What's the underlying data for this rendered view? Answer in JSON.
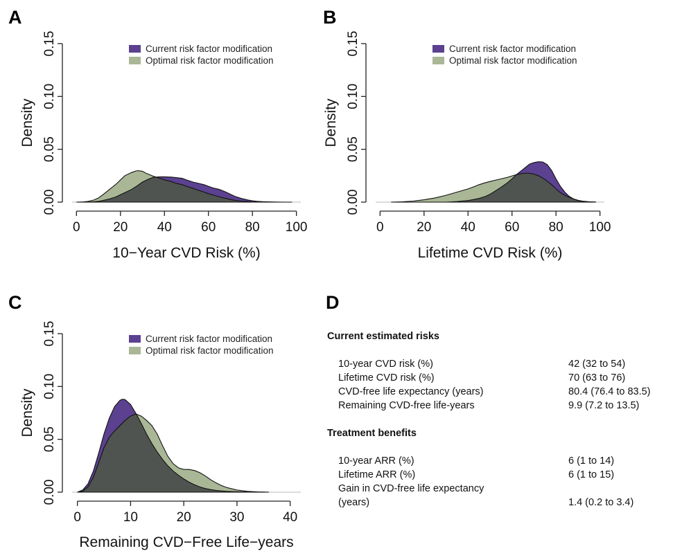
{
  "colors": {
    "current": "#5b4190",
    "optimal": "#a9b796",
    "overlap": "#505450",
    "outline": "#111111"
  },
  "chart_data": [
    {
      "panel": "A",
      "type": "area",
      "xlabel": "10−Year CVD Risk (%)",
      "ylabel": "Density",
      "xlim": [
        -2,
        102
      ],
      "ylim": [
        0,
        0.15
      ],
      "xticks": [
        "0",
        "20",
        "40",
        "60",
        "80",
        "100"
      ],
      "yticks": [
        "0.00",
        "0.05",
        "0.10",
        "0.15"
      ],
      "legend_position": "top-right",
      "series": [
        {
          "name": "Current risk factor modification",
          "color": "#5b4190",
          "x": [
            5,
            8,
            10,
            12,
            15,
            18,
            20,
            22,
            25,
            28,
            30,
            33,
            35,
            38,
            40,
            43,
            45,
            48,
            50,
            53,
            55,
            58,
            60,
            62,
            65,
            68,
            70,
            72,
            75,
            78,
            80,
            82,
            85,
            88,
            90,
            92,
            95,
            98
          ],
          "y": [
            0.0001,
            0.0004,
            0.0008,
            0.0015,
            0.003,
            0.005,
            0.007,
            0.009,
            0.012,
            0.016,
            0.019,
            0.022,
            0.0235,
            0.024,
            0.024,
            0.0237,
            0.0233,
            0.0225,
            0.021,
            0.019,
            0.018,
            0.0165,
            0.015,
            0.0135,
            0.012,
            0.0095,
            0.0075,
            0.0055,
            0.0035,
            0.002,
            0.0013,
            0.0008,
            0.0004,
            0.0002,
            0.0001,
            5e-05,
            2e-05,
            1e-05
          ]
        },
        {
          "name": "Optimal risk factor modification",
          "color": "#a9b796",
          "x": [
            0,
            3,
            5,
            8,
            10,
            12,
            15,
            18,
            20,
            22,
            25,
            27,
            28,
            30,
            32,
            35,
            38,
            40,
            43,
            45,
            48,
            50,
            53,
            55,
            58,
            60,
            62,
            65,
            68,
            70,
            72,
            75,
            78,
            80,
            85,
            90,
            95
          ],
          "y": [
            0,
            0.0002,
            0.0006,
            0.002,
            0.004,
            0.007,
            0.012,
            0.017,
            0.021,
            0.025,
            0.028,
            0.0295,
            0.0298,
            0.0292,
            0.027,
            0.0245,
            0.0225,
            0.021,
            0.0195,
            0.018,
            0.0165,
            0.015,
            0.013,
            0.0115,
            0.0095,
            0.008,
            0.0068,
            0.005,
            0.0035,
            0.0025,
            0.0017,
            0.001,
            0.0005,
            0.0003,
            0.0001,
            3e-05,
            0
          ]
        }
      ]
    },
    {
      "panel": "B",
      "type": "area",
      "xlabel": "Lifetime CVD Risk (%)",
      "ylabel": "Density",
      "xlim": [
        -2,
        102
      ],
      "ylim": [
        0,
        0.15
      ],
      "xticks": [
        "0",
        "20",
        "40",
        "60",
        "80",
        "100"
      ],
      "yticks": [
        "0.00",
        "0.05",
        "0.10",
        "0.15"
      ],
      "legend_position": "top-right",
      "series": [
        {
          "name": "Current risk factor modification",
          "color": "#5b4190",
          "x": [
            30,
            35,
            40,
            42,
            45,
            48,
            50,
            52,
            55,
            58,
            60,
            62,
            65,
            68,
            70,
            72,
            74,
            76,
            78,
            80,
            82,
            84,
            86,
            88,
            90,
            92,
            95,
            98
          ],
          "y": [
            0,
            0.0005,
            0.0015,
            0.0022,
            0.0035,
            0.0055,
            0.0075,
            0.01,
            0.014,
            0.0185,
            0.022,
            0.026,
            0.031,
            0.036,
            0.0375,
            0.0382,
            0.038,
            0.0355,
            0.03,
            0.022,
            0.015,
            0.0095,
            0.0055,
            0.003,
            0.0015,
            0.0007,
            0.0002,
            0
          ]
        },
        {
          "name": "Optimal risk factor modification",
          "color": "#a9b796",
          "x": [
            5,
            10,
            15,
            20,
            25,
            30,
            35,
            40,
            43,
            45,
            48,
            50,
            53,
            55,
            58,
            60,
            62,
            65,
            67,
            70,
            72,
            75,
            78,
            80,
            82,
            85,
            88,
            90,
            92,
            95,
            98
          ],
          "y": [
            0,
            0.0003,
            0.001,
            0.0022,
            0.004,
            0.0065,
            0.0095,
            0.0125,
            0.0148,
            0.0165,
            0.0185,
            0.0195,
            0.021,
            0.022,
            0.0235,
            0.0248,
            0.026,
            0.0272,
            0.0275,
            0.0265,
            0.025,
            0.0215,
            0.0165,
            0.0125,
            0.009,
            0.0055,
            0.003,
            0.0018,
            0.001,
            0.0004,
            0.0001
          ]
        }
      ]
    },
    {
      "panel": "C",
      "type": "area",
      "xlabel": "Remaining CVD−Free Life−years",
      "ylabel": "Density",
      "xlim": [
        -1,
        42
      ],
      "ylim": [
        0,
        0.15
      ],
      "xticks": [
        "0",
        "10",
        "20",
        "30",
        "40"
      ],
      "yticks": [
        "0.00",
        "0.05",
        "0.10",
        "0.15"
      ],
      "legend_position": "top-right",
      "series": [
        {
          "name": "Current risk factor modification",
          "color": "#5b4190",
          "x": [
            0,
            1,
            2,
            3,
            4,
            5,
            6,
            7,
            8,
            8.5,
            9,
            10,
            11,
            12,
            13,
            14,
            15,
            16,
            17,
            18,
            19,
            20,
            21,
            22,
            23,
            24,
            25,
            26,
            27,
            28,
            30,
            32,
            34,
            36
          ],
          "y": [
            0,
            0.002,
            0.008,
            0.02,
            0.037,
            0.055,
            0.07,
            0.081,
            0.087,
            0.088,
            0.0875,
            0.083,
            0.0745,
            0.065,
            0.055,
            0.046,
            0.038,
            0.031,
            0.025,
            0.02,
            0.016,
            0.0125,
            0.0095,
            0.007,
            0.005,
            0.0035,
            0.0025,
            0.0017,
            0.0012,
            0.0008,
            0.0004,
            0.0002,
            0.0001,
            0
          ]
        },
        {
          "name": "Optimal risk factor modification",
          "color": "#a9b796",
          "x": [
            0,
            1,
            2,
            3,
            4,
            5,
            6,
            7,
            8,
            9,
            10,
            11,
            12,
            13,
            14,
            15,
            16,
            17,
            18,
            19,
            20,
            21,
            22,
            23,
            24,
            25,
            26,
            27,
            28,
            30,
            32,
            34,
            36
          ],
          "y": [
            0,
            0.001,
            0.005,
            0.014,
            0.028,
            0.042,
            0.052,
            0.058,
            0.063,
            0.068,
            0.072,
            0.074,
            0.072,
            0.068,
            0.063,
            0.055,
            0.044,
            0.034,
            0.027,
            0.023,
            0.0215,
            0.0215,
            0.0205,
            0.0185,
            0.0155,
            0.012,
            0.009,
            0.0065,
            0.0045,
            0.002,
            0.0008,
            0.0002,
            0
          ]
        }
      ]
    }
  ],
  "panel_letters": {
    "a": "A",
    "b": "B",
    "c": "C",
    "d": "D"
  },
  "panel_d": {
    "section1_title": "Current estimated risks",
    "section1_rows": [
      {
        "label": "10-year CVD risk (%)",
        "value": "42 (32 to 54)"
      },
      {
        "label": "Lifetime CVD risk (%)",
        "value": "70 (63 to 76)"
      },
      {
        "label": "CVD-free  life expectancy (years)",
        "value": "80.4 (76.4 to 83.5)"
      },
      {
        "label": "Remaining  CVD-free  life-years",
        "value": "9.9 (7.2 to 13.5)"
      }
    ],
    "section2_title": "Treatment benefits",
    "section2_rows": [
      {
        "label": "10-year ARR (%)",
        "value": "6 (1 to 14)"
      },
      {
        "label": "Lifetime ARR (%)",
        "value": "6 (1 to 15)"
      },
      {
        "label": "Gain  in CVD-free  life expectancy",
        "value": ""
      },
      {
        "label": "(years)",
        "value": "1.4 (0.2 to 3.4)"
      }
    ]
  }
}
